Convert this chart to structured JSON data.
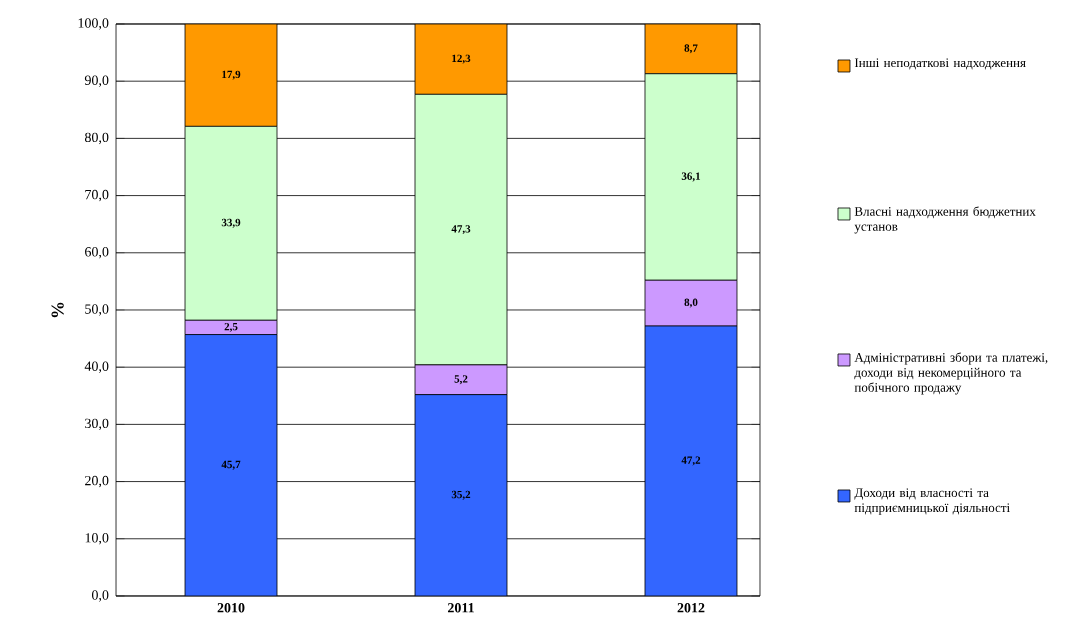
{
  "chart_data": {
    "type": "bar",
    "stacked": true,
    "ylabel": "%",
    "categories": [
      "2010",
      "2011",
      "2012"
    ],
    "series": [
      {
        "name": "Доходи від власності та підприємницької діяльності",
        "color": "#3366ff",
        "values": [
          45.7,
          35.2,
          47.2
        ],
        "value_labels": [
          "45,7",
          "35,2",
          "47,2"
        ]
      },
      {
        "name": "Адміністративні збори та платежі, доходи від некомерційного та побічного продажу",
        "color": "#cc99ff",
        "values": [
          2.5,
          5.2,
          8.0
        ],
        "value_labels": [
          "2,5",
          "5,2",
          "8,0"
        ]
      },
      {
        "name": "Власні надходження бюджетних установ",
        "color": "#ccffcc",
        "values": [
          33.9,
          47.3,
          36.1
        ],
        "value_labels": [
          "33,9",
          "47,3",
          "36,1"
        ]
      },
      {
        "name": "Інші неподаткові надходження",
        "color": "#ff9900",
        "values": [
          17.9,
          12.3,
          8.7
        ],
        "value_labels": [
          "17,9",
          "12,3",
          "8,7"
        ]
      }
    ],
    "ylim": [
      0,
      100
    ],
    "yticks": [
      {
        "value": 0,
        "label": "0,0"
      },
      {
        "value": 10,
        "label": "10,0"
      },
      {
        "value": 20,
        "label": "20,0"
      },
      {
        "value": 30,
        "label": "30,0"
      },
      {
        "value": 40,
        "label": "40,0"
      },
      {
        "value": 50,
        "label": "50,0"
      },
      {
        "value": 60,
        "label": "60,0"
      },
      {
        "value": 70,
        "label": "70,0"
      },
      {
        "value": 80,
        "label": "80,0"
      },
      {
        "value": 90,
        "label": "90,0"
      },
      {
        "value": 100,
        "label": "100,0"
      }
    ],
    "grid": "y",
    "legend": "right"
  }
}
